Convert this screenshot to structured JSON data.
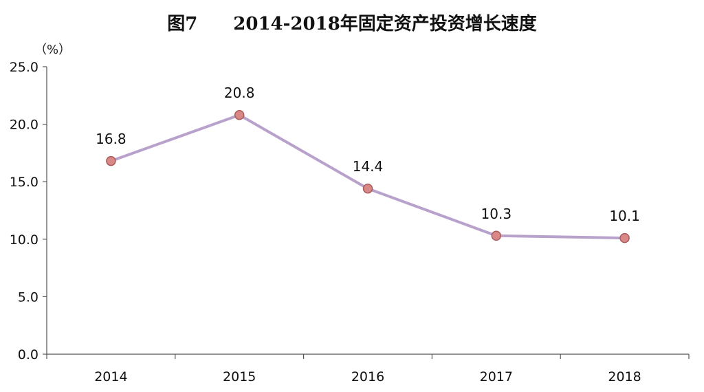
{
  "chart_data": {
    "type": "line",
    "title": "图7　　2014-2018年固定资产投资增长速度",
    "unit_label": "（%）",
    "categories": [
      "2014",
      "2015",
      "2016",
      "2017",
      "2018"
    ],
    "series": [
      {
        "values": [
          16.8,
          20.8,
          14.4,
          10.3,
          10.1
        ]
      }
    ],
    "data_labels": [
      "16.8",
      "20.8",
      "14.4",
      "10.3",
      "10.1"
    ],
    "ylim": [
      0,
      25
    ],
    "y_ticks": [
      "0.0",
      "5.0",
      "10.0",
      "15.0",
      "20.0",
      "25.0"
    ],
    "grid": false,
    "legend": "none",
    "colors": {
      "line": "#b8a2cc",
      "marker_fill": "#d98888",
      "marker_stroke": "#a85a5a",
      "axis": "#555555"
    }
  }
}
